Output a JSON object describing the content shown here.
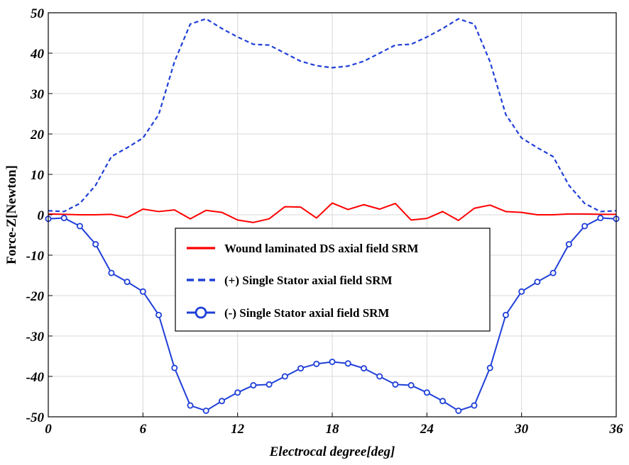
{
  "chart_data": {
    "type": "line",
    "xlabel": "Electrocal degree[deg]",
    "ylabel": "Force-Z[Newton]",
    "xlim": [
      0,
      36
    ],
    "ylim": [
      -50,
      50
    ],
    "xticks": [
      0,
      6,
      12,
      18,
      24,
      30,
      36
    ],
    "yticks": [
      -50,
      -40,
      -30,
      -20,
      -10,
      0,
      10,
      20,
      30,
      40,
      50
    ],
    "grid": true,
    "legend_position": "center",
    "series": [
      {
        "name": "Wound laminated DS axial field SRM",
        "color": "#ff0000",
        "style": "solid",
        "x": [
          0,
          1,
          2,
          3,
          4,
          5,
          6,
          7,
          8,
          9,
          10,
          11,
          12,
          13,
          14,
          15,
          16,
          17,
          18,
          19,
          20,
          21,
          22,
          23,
          24,
          25,
          26,
          27,
          28,
          29,
          30,
          31,
          32,
          33,
          34,
          35,
          36
        ],
        "values": [
          0.2,
          0.1,
          0.0,
          0.0,
          0.1,
          -0.7,
          1.4,
          0.8,
          1.2,
          -1.0,
          1.1,
          0.6,
          -1.3,
          -1.9,
          -1.0,
          2.0,
          1.9,
          -0.8,
          2.9,
          1.3,
          2.5,
          1.4,
          2.8,
          -1.3,
          -0.9,
          0.8,
          -1.4,
          1.6,
          2.4,
          0.8,
          0.6,
          0.0,
          0.0,
          0.2,
          0.2,
          0.1,
          0.1
        ]
      },
      {
        "name": "(+) Single Stator axial field SRM",
        "color": "#1f3fd8",
        "style": "dashed",
        "x": [
          0,
          1,
          2,
          3,
          4,
          5,
          6,
          7,
          8,
          9,
          10,
          11,
          12,
          13,
          14,
          15,
          16,
          17,
          18,
          19,
          20,
          21,
          22,
          23,
          24,
          25,
          26,
          27,
          28,
          29,
          30,
          31,
          32,
          33,
          34,
          35,
          36
        ],
        "values": [
          1.0,
          0.8,
          2.8,
          7.3,
          14.4,
          16.6,
          19.0,
          24.8,
          37.9,
          47.2,
          48.5,
          46.1,
          44.0,
          42.2,
          42.0,
          40.0,
          38.0,
          36.9,
          36.4,
          36.8,
          38.0,
          40.0,
          42.0,
          42.2,
          44.0,
          46.1,
          48.5,
          47.2,
          37.9,
          24.8,
          19.0,
          16.6,
          14.4,
          7.3,
          2.8,
          0.8,
          1.0
        ]
      },
      {
        "name": "(-)  Single Stator axial field SRM",
        "color": "#1f3fd8",
        "style": "solid-circle",
        "x": [
          0,
          1,
          2,
          3,
          4,
          5,
          6,
          7,
          8,
          9,
          10,
          11,
          12,
          13,
          14,
          15,
          16,
          17,
          18,
          19,
          20,
          21,
          22,
          23,
          24,
          25,
          26,
          27,
          28,
          29,
          30,
          31,
          32,
          33,
          34,
          35,
          36
        ],
        "values": [
          -1.0,
          -0.8,
          -2.8,
          -7.3,
          -14.4,
          -16.6,
          -19.0,
          -24.8,
          -37.9,
          -47.2,
          -48.5,
          -46.1,
          -44.0,
          -42.2,
          -42.0,
          -40.0,
          -38.0,
          -36.9,
          -36.4,
          -36.8,
          -38.0,
          -40.0,
          -42.0,
          -42.2,
          -44.0,
          -46.1,
          -48.5,
          -47.2,
          -37.9,
          -24.8,
          -19.0,
          -16.6,
          -14.4,
          -7.3,
          -2.8,
          -0.8,
          -1.0
        ]
      }
    ]
  }
}
